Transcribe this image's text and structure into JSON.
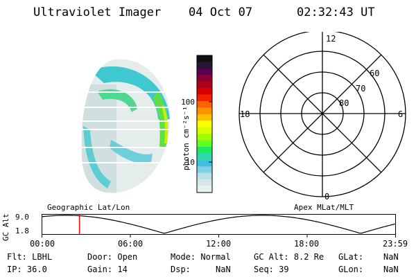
{
  "header": {
    "instrument": "Ultraviolet Imager",
    "date": "04 Oct 07",
    "time": "02:32:43 UT"
  },
  "colorbar": {
    "unit_label": "photon cm⁻²s⁻¹",
    "ticks": [
      {
        "label": "100",
        "value": 100
      },
      {
        "label": "10",
        "value": 10
      }
    ],
    "colors": [
      "#101010",
      "#2a1238",
      "#5a0050",
      "#8a0030",
      "#b00018",
      "#d80000",
      "#f02000",
      "#ff6000",
      "#ff9000",
      "#ffc000",
      "#ffff00",
      "#d8ff00",
      "#a0ff00",
      "#60ff20",
      "#20e860",
      "#30d8b0",
      "#40c0e0",
      "#80d0e8",
      "#b8e0e8",
      "#d8e8e8",
      "#e8f0f0"
    ]
  },
  "polar_grid": {
    "mlt_labels": {
      "top": "12",
      "left": "18",
      "right": "6",
      "bottom": "0"
    },
    "lat_labels": [
      "60",
      "70",
      "80"
    ]
  },
  "altitude_panel": {
    "y_axis_label": "GC Alt",
    "y_ticks": [
      "9.0",
      "1.8"
    ],
    "left_caption": "Geographic Lat/Lon",
    "right_caption": "Apex MLat/MLT",
    "x_ticks": [
      "00:00",
      "06:00",
      "12:00",
      "18:00",
      "23:59"
    ],
    "current_time_hours": 2.545,
    "cursor_color": "#ff0000"
  },
  "status": {
    "filter": {
      "label": "Flt:",
      "value": "LBHL"
    },
    "ip": {
      "label": "IP:",
      "value": "36.0"
    },
    "door": {
      "label": "Door:",
      "value": "Open"
    },
    "gain": {
      "label": "Gain:",
      "value": "14"
    },
    "mode": {
      "label": "Mode:",
      "value": "Normal"
    },
    "dsp": {
      "label": "Dsp:",
      "value": "NaN"
    },
    "gc_alt": {
      "label": "GC Alt:",
      "value": "8.2 Re"
    },
    "seq": {
      "label": "Seq:",
      "value": "39"
    },
    "glat": {
      "label": "GLat:",
      "value": "NaN"
    },
    "glon": {
      "label": "GLon:",
      "value": "NaN"
    }
  }
}
